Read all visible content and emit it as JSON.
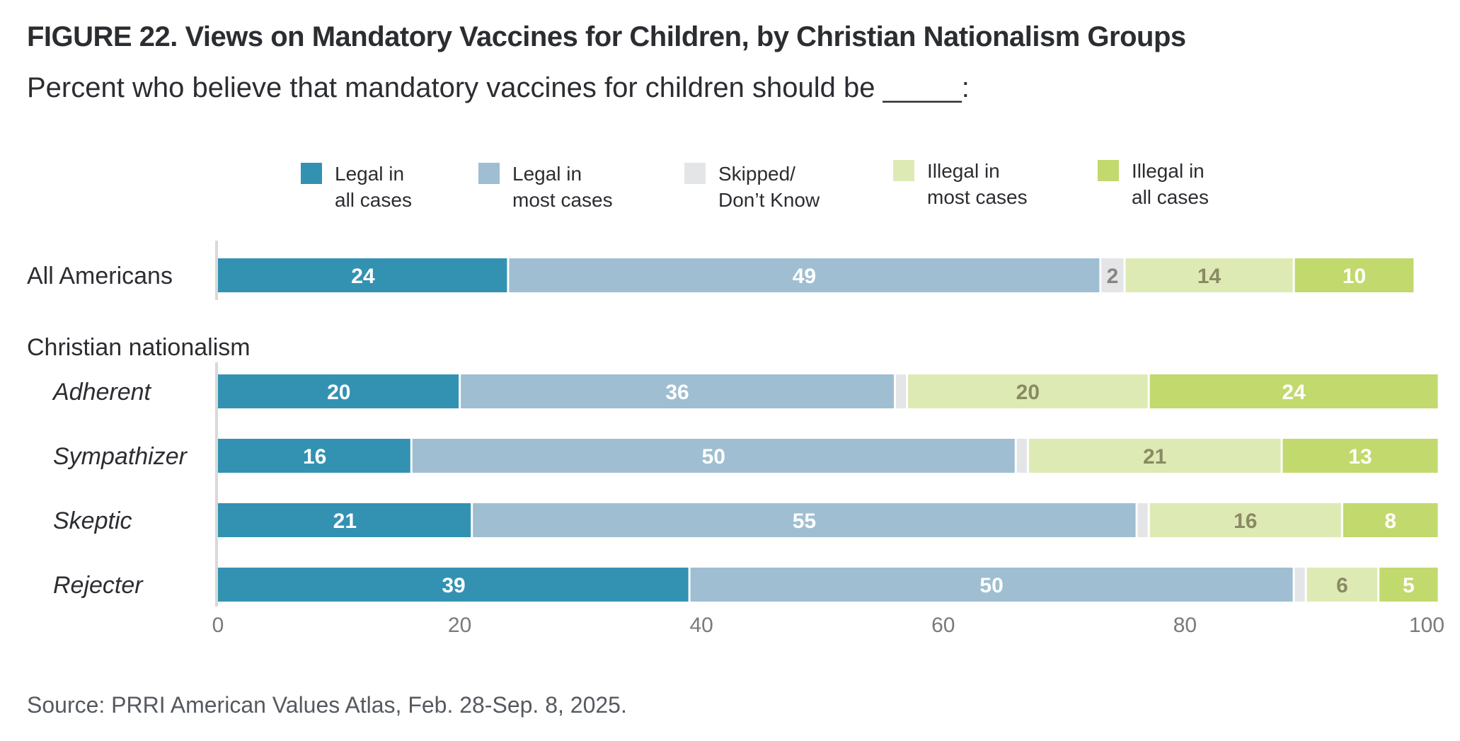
{
  "chart_data": {
    "type": "bar",
    "orientation": "horizontal",
    "stacked": true,
    "title": "FIGURE 22.  Views on Mandatory Vaccines for Children, by Christian Nationalism Groups",
    "subtitle": "Percent who believe that mandatory vaccines for children should be _____:",
    "source": "Source: PRRI American Values Atlas, Feb. 28-Sep. 8, 2025.",
    "xlabel": "",
    "ylabel": "",
    "xlim": [
      0,
      100
    ],
    "ticks": [
      "0",
      "20",
      "40",
      "60",
      "80",
      "100"
    ],
    "tick_values": [
      0,
      20,
      40,
      60,
      80,
      100
    ],
    "grid": false,
    "legend_position": "top",
    "series": [
      {
        "name": "Legal in all cases",
        "lines": [
          "Legal in",
          "all cases"
        ],
        "color": "#3392b2",
        "label_color": "#ffffff"
      },
      {
        "name": "Legal in most cases",
        "lines": [
          "Legal in",
          "most cases"
        ],
        "color": "#9fbed1",
        "label_color": "#ffffff"
      },
      {
        "name": "Skipped/Don't Know",
        "lines": [
          "Skipped/",
          "Don’t Know"
        ],
        "color": "#e4e5e7",
        "label_color": "#8a8580"
      },
      {
        "name": "Illegal in most cases",
        "lines": [
          "Illegal in",
          "most cases"
        ],
        "color": "#deeab4",
        "label_color": "#8a8a64"
      },
      {
        "name": "Illegal in all cases",
        "lines": [
          "Illegal in",
          "all cases"
        ],
        "color": "#c2d96d",
        "label_color": "#ffffff"
      }
    ],
    "groups": [
      {
        "label": "",
        "rows": [
          0
        ]
      },
      {
        "label": "Christian nationalism",
        "rows": [
          1,
          2,
          3,
          4
        ]
      }
    ],
    "categories": [
      "All Americans",
      "Adherent",
      "Sympathizer",
      "Skeptic",
      "Rejecter"
    ],
    "category_italic": [
      false,
      true,
      true,
      true,
      true
    ],
    "values": [
      [
        24,
        49,
        2,
        14,
        10
      ],
      [
        20,
        36,
        1,
        20,
        24
      ],
      [
        16,
        50,
        1,
        21,
        13
      ],
      [
        21,
        55,
        1,
        16,
        8
      ],
      [
        39,
        50,
        1,
        6,
        5
      ]
    ],
    "value_labels": [
      [
        "24",
        "49",
        "2",
        "14",
        "10"
      ],
      [
        "20",
        "36",
        "",
        "20",
        "24"
      ],
      [
        "16",
        "50",
        "",
        "21",
        "13"
      ],
      [
        "21",
        "55",
        "",
        "16",
        "8"
      ],
      [
        "39",
        "50",
        "",
        "6",
        "5"
      ]
    ]
  }
}
